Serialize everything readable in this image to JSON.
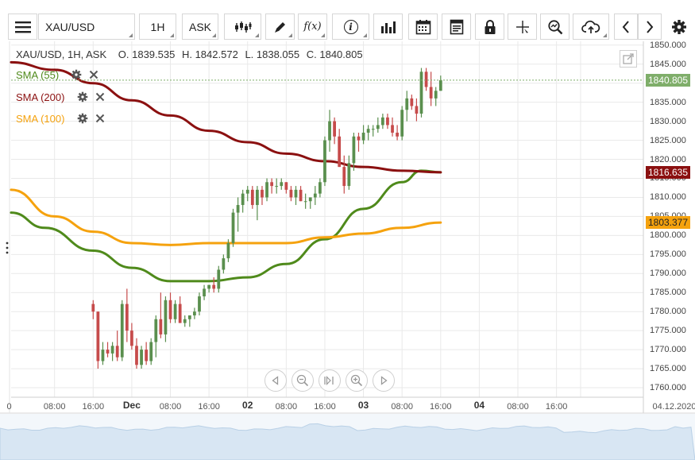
{
  "toolbar": {
    "symbol": "XAU/USD",
    "timeframe": "1H",
    "price_type": "ASK",
    "function_label": "f(x)",
    "info_label": "i"
  },
  "ohlc": {
    "symbol_line": "XAU/USD, 1H, ASK",
    "open": "O. 1839.535",
    "high": "H. 1842.572",
    "low": "L. 1838.055",
    "close": "C. 1840.805"
  },
  "indicators": [
    {
      "label": "SMA (55)",
      "color": "#4f8a1b"
    },
    {
      "label": "SMA (200)",
      "color": "#8b1010"
    },
    {
      "label": "SMA (100)",
      "color": "#f5a20e"
    }
  ],
  "price_tags": {
    "last": {
      "text": "1840.805",
      "value": 1840.805,
      "bg": "#7fae6a",
      "fg": "#ffffff"
    },
    "sma200": {
      "text": "1816.635",
      "value": 1816.635,
      "bg": "#8b1010",
      "fg": "#ffffff"
    },
    "sma100": {
      "text": "1803.377",
      "value": 1803.377,
      "bg": "#f5a20e",
      "fg": "#222222"
    }
  },
  "colors": {
    "up": "#5a8f4e",
    "down": "#c64b4b",
    "grid": "#e9e9e9"
  },
  "chart_data": {
    "type": "candlestick",
    "title": "",
    "xlabel": "",
    "ylabel": "",
    "ylim": [
      1757.5,
      1851
    ],
    "y_ticks": [
      1850,
      1845,
      1840,
      1835,
      1830,
      1825,
      1820,
      1815,
      1810,
      1805,
      1800,
      1795,
      1790,
      1785,
      1780,
      1775,
      1770,
      1765,
      1760
    ],
    "y_tick_labels": [
      "1850.000",
      "1845.000",
      "",
      "1835.000",
      "1830.000",
      "1825.000",
      "1820.000",
      "1815.000",
      "1810.000",
      "1805.000",
      "1800.000",
      "1795.000",
      "1790.000",
      "1785.000",
      "1780.000",
      "1775.000",
      "1770.000",
      "1765.000",
      "1760.000"
    ],
    "x_range_hours": [
      -1,
      130
    ],
    "x_ticks": [
      {
        "h": -1,
        "label": "0"
      },
      {
        "h": 8,
        "label": "08:00"
      },
      {
        "h": 16,
        "label": "16:00"
      },
      {
        "h": 24,
        "label": "Dec",
        "major": true
      },
      {
        "h": 32,
        "label": "08:00"
      },
      {
        "h": 40,
        "label": "16:00"
      },
      {
        "h": 48,
        "label": "02",
        "major": true
      },
      {
        "h": 56,
        "label": "08:00"
      },
      {
        "h": 64,
        "label": "16:00"
      },
      {
        "h": 72,
        "label": "03",
        "major": true
      },
      {
        "h": 80,
        "label": "08:00"
      },
      {
        "h": 88,
        "label": "16:00"
      },
      {
        "h": 96,
        "label": "04",
        "major": true
      },
      {
        "h": 104,
        "label": "08:00"
      },
      {
        "h": 112,
        "label": "16:00"
      },
      {
        "h": 117,
        "label": "04.12.2020"
      }
    ],
    "candles": [
      [
        1782,
        1783,
        1778,
        1780
      ],
      [
        1780,
        1780,
        1765,
        1767
      ],
      [
        1767,
        1772,
        1766,
        1770
      ],
      [
        1770,
        1772,
        1768,
        1769
      ],
      [
        1769,
        1772,
        1767,
        1771
      ],
      [
        1771,
        1775,
        1767,
        1768
      ],
      [
        1768,
        1783,
        1767,
        1782
      ],
      [
        1782,
        1786,
        1772,
        1775
      ],
      [
        1775,
        1777,
        1770,
        1771
      ],
      [
        1771,
        1773,
        1765,
        1766
      ],
      [
        1766,
        1771,
        1765,
        1770
      ],
      [
        1770,
        1772,
        1766,
        1767
      ],
      [
        1767,
        1773,
        1766,
        1772
      ],
      [
        1772,
        1779,
        1768,
        1778
      ],
      [
        1778,
        1785,
        1773,
        1774
      ],
      [
        1774,
        1784,
        1772,
        1783
      ],
      [
        1783,
        1785,
        1777,
        1778
      ],
      [
        1778,
        1783,
        1777,
        1782
      ],
      [
        1782,
        1784,
        1777,
        1777
      ],
      [
        1777,
        1779,
        1776,
        1778
      ],
      [
        1778,
        1779,
        1776,
        1779
      ],
      [
        1779,
        1781,
        1778,
        1780
      ],
      [
        1780,
        1785,
        1779,
        1784
      ],
      [
        1784,
        1787,
        1783,
        1786
      ],
      [
        1786,
        1787,
        1785,
        1787
      ],
      [
        1787,
        1789,
        1785,
        1786
      ],
      [
        1786,
        1792,
        1785,
        1791
      ],
      [
        1791,
        1795,
        1790,
        1794
      ],
      [
        1794,
        1799,
        1793,
        1798
      ],
      [
        1798,
        1807,
        1797,
        1806
      ],
      [
        1806,
        1810,
        1801,
        1808
      ],
      [
        1808,
        1812,
        1806,
        1811
      ],
      [
        1811,
        1813,
        1809,
        1812
      ],
      [
        1812,
        1813,
        1807,
        1808
      ],
      [
        1808,
        1813,
        1804,
        1812
      ],
      [
        1812,
        1813,
        1808,
        1810
      ],
      [
        1810,
        1815,
        1809,
        1814
      ],
      [
        1814,
        1815,
        1811,
        1813
      ],
      [
        1813,
        1815,
        1811,
        1813
      ],
      [
        1813,
        1815,
        1812,
        1814
      ],
      [
        1814,
        1814,
        1811,
        1812
      ],
      [
        1812,
        1813,
        1809,
        1810
      ],
      [
        1810,
        1813,
        1808,
        1812
      ],
      [
        1812,
        1813,
        1809,
        1809
      ],
      [
        1809,
        1811,
        1807,
        1809
      ],
      [
        1809,
        1810,
        1807,
        1810
      ],
      [
        1810,
        1813,
        1808,
        1811
      ],
      [
        1811,
        1815,
        1810,
        1814
      ],
      [
        1814,
        1826,
        1813,
        1825
      ],
      [
        1825,
        1833,
        1822,
        1830
      ],
      [
        1830,
        1831,
        1824,
        1826
      ],
      [
        1826,
        1828,
        1818,
        1818
      ],
      [
        1818,
        1821,
        1811,
        1813
      ],
      [
        1813,
        1821,
        1812,
        1819
      ],
      [
        1819,
        1827,
        1817,
        1826
      ],
      [
        1826,
        1827,
        1822,
        1825
      ],
      [
        1825,
        1829,
        1824,
        1827
      ],
      [
        1827,
        1829,
        1825,
        1828
      ],
      [
        1828,
        1829,
        1826,
        1828
      ],
      [
        1828,
        1831,
        1827,
        1829
      ],
      [
        1829,
        1832,
        1828,
        1831
      ],
      [
        1831,
        1832,
        1828,
        1829
      ],
      [
        1829,
        1831,
        1826,
        1827
      ],
      [
        1827,
        1829,
        1825,
        1826
      ],
      [
        1826,
        1834,
        1825,
        1833
      ],
      [
        1833,
        1838,
        1830,
        1836
      ],
      [
        1836,
        1837,
        1833,
        1834
      ],
      [
        1834,
        1836,
        1830,
        1832
      ],
      [
        1832,
        1844,
        1831,
        1843
      ],
      [
        1843,
        1844,
        1838,
        1839
      ],
      [
        1839,
        1843,
        1834,
        1836
      ],
      [
        1836,
        1839,
        1834,
        1838
      ],
      [
        1838,
        1842,
        1838,
        1840.8
      ]
    ],
    "series": [
      {
        "name": "SMA (55)",
        "color": "#4f8a1b",
        "x": [
          -1,
          6,
          16,
          24,
          32,
          40,
          48,
          56,
          64,
          72,
          80,
          84,
          88
        ],
        "y": [
          1806,
          1802,
          1796,
          1791.5,
          1788,
          1788,
          1789,
          1792.5,
          1799,
          1807,
          1814,
          1817,
          1816.6
        ]
      },
      {
        "name": "SMA (200)",
        "color": "#8b1010",
        "x": [
          -1,
          8,
          16,
          24,
          32,
          40,
          48,
          56,
          64,
          72,
          80,
          88
        ],
        "y": [
          1845.5,
          1843.5,
          1840,
          1835.5,
          1831.5,
          1827.5,
          1824.5,
          1821.5,
          1819.5,
          1818,
          1817,
          1816.6
        ]
      },
      {
        "name": "SMA (100)",
        "color": "#f5a20e",
        "x": [
          -1,
          8,
          16,
          24,
          32,
          40,
          48,
          56,
          64,
          72,
          80,
          88
        ],
        "y": [
          1812,
          1805,
          1801,
          1798,
          1797.5,
          1798,
          1798,
          1798,
          1799.5,
          1800.5,
          1802,
          1803.4
        ]
      }
    ],
    "last_price": 1840.805
  }
}
